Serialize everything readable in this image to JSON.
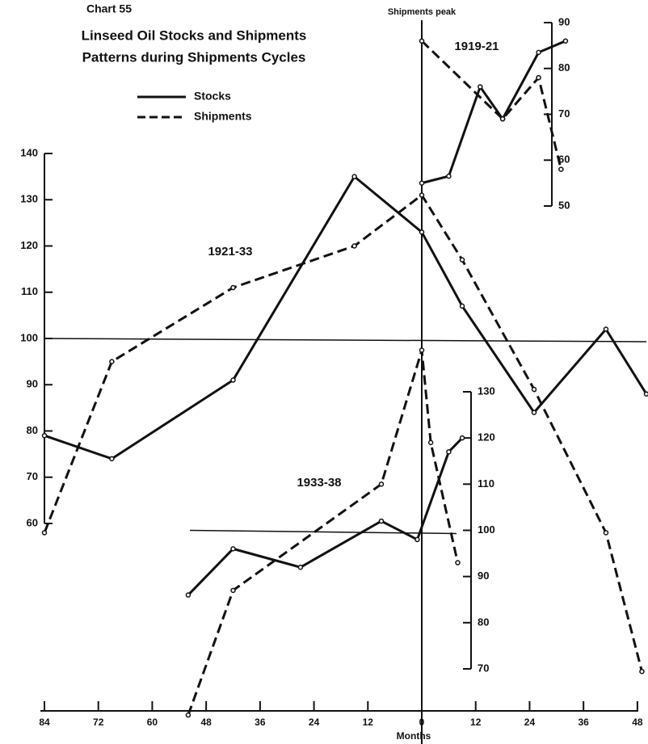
{
  "chart_data": {
    "type": "line",
    "title": "Chart 55",
    "subtitle": [
      "Linseed Oil Stocks and Shipments",
      "Patterns during Shipments Cycles"
    ],
    "annotation": "Shipments peak",
    "xlabel": "Months",
    "xlim": [
      -84,
      50
    ],
    "xticks": [
      {
        "value": -84,
        "label": "84"
      },
      {
        "value": -72,
        "label": "72"
      },
      {
        "value": -60,
        "label": "60"
      },
      {
        "value": -48,
        "label": "48"
      },
      {
        "value": -36,
        "label": "36"
      },
      {
        "value": -24,
        "label": "24"
      },
      {
        "value": -12,
        "label": "12"
      },
      0,
      12,
      24,
      36,
      48
    ],
    "legend": [
      {
        "name": "Stocks",
        "style": "solid"
      },
      {
        "name": "Shipments",
        "style": "dashed"
      }
    ],
    "color": "#111111",
    "panels": [
      {
        "label": "1921-33",
        "ylim": [
          60,
          140
        ],
        "yticks": [
          60,
          70,
          80,
          90,
          100,
          110,
          120,
          130,
          140
        ],
        "baseline": 100,
        "series": [
          {
            "style": "solid",
            "x": [
              -84,
              -69,
              -42,
              -15,
              0,
              9,
              25,
              41,
              50
            ],
            "values": [
              79,
              74,
              91,
              135,
              123,
              107,
              84,
              102,
              88
            ]
          },
          {
            "style": "dashed",
            "x": [
              -84,
              -69,
              -42,
              -15,
              0,
              9,
              25,
              41,
              49
            ],
            "values": [
              58,
              95,
              111,
              120,
              131,
              117,
              89,
              58,
              28
            ]
          }
        ]
      },
      {
        "label": "1919-21",
        "ylim": [
          50,
          90
        ],
        "yticks": [
          50,
          60,
          70,
          80,
          90
        ],
        "series": [
          {
            "style": "solid",
            "x": [
              0,
              6,
              13,
              18,
              26,
              32
            ],
            "values": [
              55,
              56.5,
              76,
              69,
              83.5,
              86
            ]
          },
          {
            "style": "dashed",
            "x": [
              0,
              18,
              26,
              31
            ],
            "values": [
              86,
              69,
              78,
              58
            ]
          }
        ]
      },
      {
        "label": "1933-38",
        "ylim": [
          70,
          130
        ],
        "yticks": [
          70,
          80,
          90,
          100,
          110,
          120,
          130
        ],
        "baseline": 100,
        "series": [
          {
            "style": "solid",
            "x": [
              -52,
              -42,
              -27,
              -9,
              -1,
              6,
              9
            ],
            "values": [
              86,
              96,
              92,
              102,
              98,
              117,
              120
            ]
          },
          {
            "style": "dashed",
            "x": [
              -52,
              -42,
              -9,
              0,
              2,
              8
            ],
            "values": [
              60,
              87,
              110,
              139,
              119,
              93
            ]
          }
        ]
      }
    ]
  }
}
